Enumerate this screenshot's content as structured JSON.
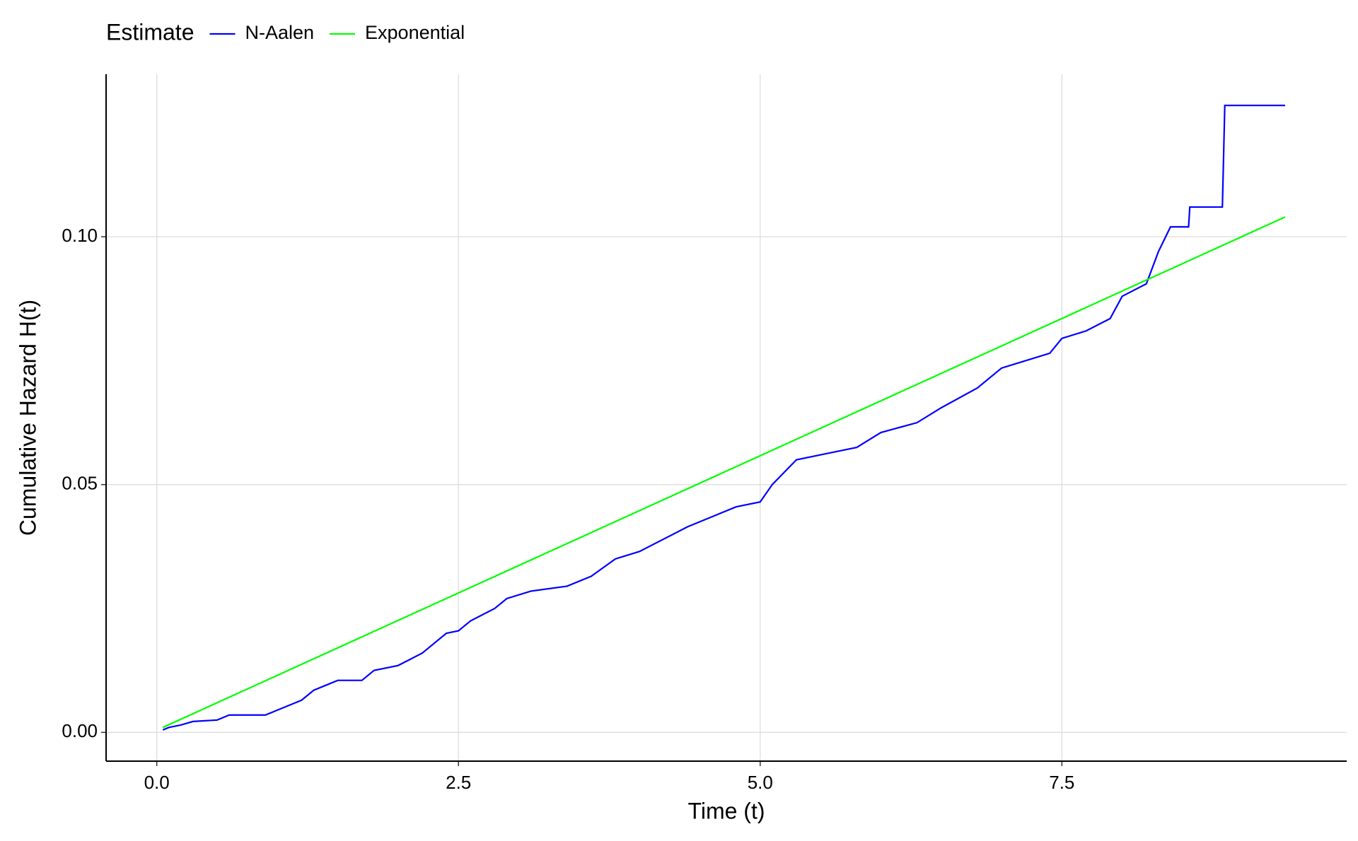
{
  "chart_data": {
    "type": "line",
    "x_label": "Time (t)",
    "y_label": "Cumulative Hazard H(t)",
    "legend_title": "Estimate",
    "legend_position": "top",
    "xlim": [
      -0.42,
      9.86
    ],
    "ylim": [
      -0.0058,
      0.1328
    ],
    "xticks": [
      {
        "value": 0,
        "label": "0.0"
      },
      {
        "value": 2.5,
        "label": "2.5"
      },
      {
        "value": 5,
        "label": "5.0"
      },
      {
        "value": 7.5,
        "label": "7.5"
      }
    ],
    "yticks": [
      {
        "value": 0,
        "label": "0.00"
      },
      {
        "value": 0.05,
        "label": "0.05"
      },
      {
        "value": 0.1,
        "label": "0.10"
      }
    ],
    "grid": true,
    "series": [
      {
        "name": "N-Aalen",
        "color": "#0000ff",
        "x": [
          0.05,
          0.1,
          0.2,
          0.3,
          0.5,
          0.6,
          0.9,
          1.0,
          1.2,
          1.3,
          1.4,
          1.5,
          1.7,
          1.8,
          2.0,
          2.2,
          2.4,
          2.5,
          2.6,
          2.8,
          2.9,
          3.1,
          3.4,
          3.6,
          3.8,
          4.0,
          4.2,
          4.4,
          4.6,
          4.8,
          5.0,
          5.1,
          5.3,
          5.6,
          5.8,
          6.0,
          6.3,
          6.5,
          6.8,
          7.0,
          7.2,
          7.4,
          7.5,
          7.7,
          7.9,
          8.0,
          8.2,
          8.3,
          8.4,
          8.55,
          8.56,
          8.83,
          8.85,
          9.35
        ],
        "values": [
          0.0005,
          0.001,
          0.0015,
          0.0022,
          0.0025,
          0.0035,
          0.0035,
          0.0045,
          0.0065,
          0.0085,
          0.0095,
          0.0105,
          0.0105,
          0.0125,
          0.0135,
          0.016,
          0.02,
          0.0205,
          0.0225,
          0.025,
          0.027,
          0.0285,
          0.0295,
          0.0315,
          0.035,
          0.0365,
          0.039,
          0.0415,
          0.0435,
          0.0455,
          0.0465,
          0.05,
          0.055,
          0.0565,
          0.0575,
          0.0605,
          0.0625,
          0.0655,
          0.0695,
          0.0735,
          0.075,
          0.0765,
          0.0795,
          0.081,
          0.0835,
          0.088,
          0.0905,
          0.097,
          0.102,
          0.102,
          0.106,
          0.106,
          0.1265,
          0.1265
        ]
      },
      {
        "name": "Exponential",
        "color": "#00ff00",
        "x": [
          0.05,
          9.35
        ],
        "values": [
          0.001,
          0.104
        ]
      }
    ]
  }
}
